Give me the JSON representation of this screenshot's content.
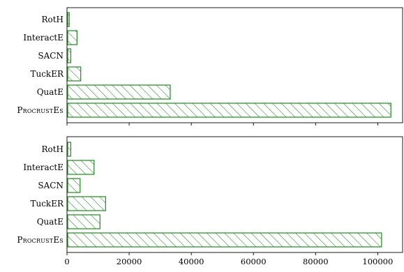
{
  "chart_data": [
    {
      "type": "bar",
      "orientation": "horizontal",
      "categories": [
        "RotH",
        "InteractE",
        "SACN",
        "TuckER",
        "QuatE",
        "ProcrustEs"
      ],
      "values": [
        500,
        3000,
        1000,
        4200,
        33000,
        104000
      ],
      "xlim": [
        0,
        108000
      ],
      "xticks": [
        0,
        20000,
        40000,
        60000,
        80000,
        100000
      ],
      "show_tick_labels": false,
      "grid": false,
      "bar_color": "#1a8c1a",
      "hatch": "/"
    },
    {
      "type": "bar",
      "orientation": "horizontal",
      "categories": [
        "RotH",
        "InteractE",
        "SACN",
        "TuckER",
        "QuatE",
        "ProcrustEs"
      ],
      "values": [
        1000,
        8500,
        4000,
        12200,
        10400,
        101000
      ],
      "xlim": [
        0,
        108000
      ],
      "xticks": [
        0,
        20000,
        40000,
        60000,
        80000,
        100000
      ],
      "xtick_labels": [
        "0",
        "20000",
        "40000",
        "60000",
        "80000",
        "100000"
      ],
      "show_tick_labels": true,
      "grid": false,
      "bar_color": "#1a8c1a",
      "hatch": "/"
    }
  ],
  "colors": {
    "bar": "#1a8c1a",
    "axis": "#000000",
    "background": "#ffffff"
  }
}
